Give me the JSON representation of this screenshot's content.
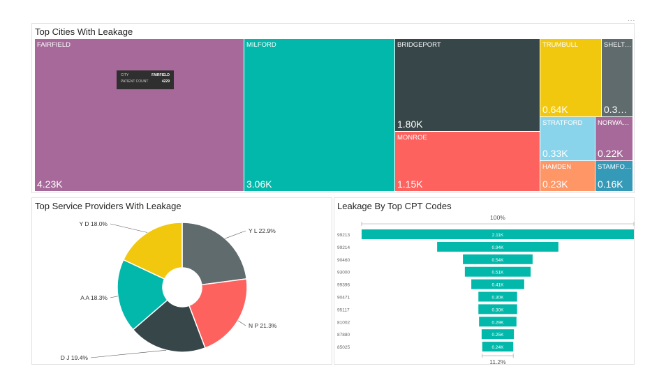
{
  "more_options": "...",
  "treemap": {
    "title": "Top Cities With Leakage",
    "tooltip": {
      "city_label": "CITY",
      "city_value": "FAIRFIELD",
      "count_label": "PATIENT COUNT",
      "count_value": "4229"
    }
  },
  "pie": {
    "title": "Top Service Providers With Leakage"
  },
  "funnel": {
    "title": "Leakage By Top CPT Codes",
    "top_percent": "100%",
    "bottom_percent": "11.2%"
  },
  "colors": {
    "purple": "#a66999",
    "teal": "#01b8aa",
    "dark": "#374649",
    "red": "#fd625e",
    "yellow": "#f2c80f",
    "gray": "#5f6b6d",
    "lightblue": "#8ad4eb",
    "orange": "#fe9666",
    "blue": "#3599b8"
  },
  "chart_data": [
    {
      "type": "treemap",
      "title": "Top Cities With Leakage",
      "tiles": [
        {
          "label": "FAIRFIELD",
          "value": "4.23K",
          "color": "#a66999"
        },
        {
          "label": "MILFORD",
          "value": "3.06K",
          "color": "#01b8aa"
        },
        {
          "label": "BRIDGEPORT",
          "value": "1.80K",
          "color": "#374649"
        },
        {
          "label": "MONROE",
          "value": "1.15K",
          "color": "#fd625e"
        },
        {
          "label": "TRUMBULL",
          "value": "0.64K",
          "color": "#f2c80f"
        },
        {
          "label": "SHELT…",
          "value": "0.3…",
          "color": "#5f6b6d"
        },
        {
          "label": "STRATFORD",
          "value": "0.33K",
          "color": "#8ad4eb"
        },
        {
          "label": "NORWA…",
          "value": "0.22K",
          "color": "#a66999"
        },
        {
          "label": "HAMDEN",
          "value": "0.23K",
          "color": "#fe9666"
        },
        {
          "label": "STAMFO…",
          "value": "0.16K",
          "color": "#3599b8"
        }
      ]
    },
    {
      "type": "pie",
      "title": "Top Service Providers With Leakage",
      "slices": [
        {
          "label": "Y L 22.9%",
          "value": 22.9,
          "color": "#5f6b6d"
        },
        {
          "label": "N P 21.3%",
          "value": 21.3,
          "color": "#fd625e"
        },
        {
          "label": "D J 19.4%",
          "value": 19.4,
          "color": "#374649"
        },
        {
          "label": "A A 18.3%",
          "value": 18.3,
          "color": "#01b8aa"
        },
        {
          "label": "Y D 18.0%",
          "value": 18.0,
          "color": "#f2c80f"
        }
      ]
    },
    {
      "type": "funnel",
      "title": "Leakage By Top CPT Codes",
      "categories": [
        "99213",
        "99214",
        "90460",
        "93000",
        "99396",
        "90471",
        "95117",
        "81002",
        "87880",
        "85025"
      ],
      "values": [
        2.11,
        0.94,
        0.54,
        0.51,
        0.41,
        0.3,
        0.3,
        0.29,
        0.25,
        0.24
      ],
      "value_labels": [
        "2.11K",
        "0.94K",
        "0.54K",
        "0.51K",
        "0.41K",
        "0.30K",
        "0.30K",
        "0.29K",
        "0.25K",
        "0.24K"
      ],
      "color": "#01b8aa",
      "top_percent": "100%",
      "bottom_percent": "11.2%"
    }
  ]
}
